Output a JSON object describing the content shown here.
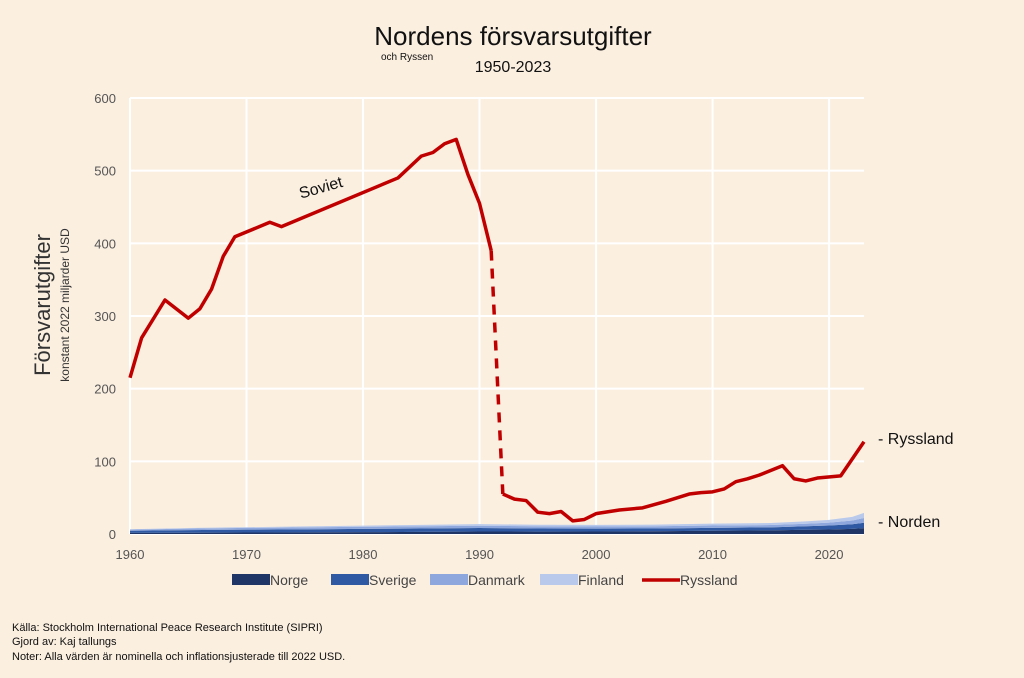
{
  "chart_data": {
    "type": "line",
    "title": "Nordens försvarsutgifter",
    "subtitle_small": "och Ryssen",
    "subtitle": "1950-2023",
    "ylabel": "Försvarutgifter",
    "ylabel_sub": "konstant 2022 miljarder USD",
    "xlim": [
      1960,
      2023
    ],
    "ylim": [
      0,
      600
    ],
    "xticks": [
      1960,
      1970,
      1980,
      1990,
      2000,
      2010,
      2020
    ],
    "yticks": [
      0,
      100,
      200,
      300,
      400,
      500,
      600
    ],
    "grid": true,
    "legend_position": "bottom",
    "annotation": "Soviet",
    "end_labels": {
      "russia": "- Ryssland",
      "nordic": "- Norden"
    },
    "colors": {
      "Norge": "#1f3566",
      "Sverige": "#2f5aa3",
      "Danmark": "#8ea8dd",
      "Finland": "#b8c9ec",
      "Ryssland": "#c00000"
    },
    "stacked_area": {
      "x": [
        1960,
        1965,
        1970,
        1975,
        1980,
        1985,
        1990,
        1995,
        2000,
        2005,
        2010,
        2015,
        2018,
        2020,
        2022,
        2023
      ],
      "series": [
        {
          "name": "Norge",
          "values": [
            1.5,
            1.8,
            2.0,
            2.2,
            2.5,
            3.0,
            3.5,
            3.3,
            3.4,
            3.8,
            4.5,
            5.0,
            5.8,
            6.2,
            7.0,
            8.0
          ]
        },
        {
          "name": "Sverige",
          "values": [
            3.0,
            3.6,
            4.0,
            4.2,
            4.5,
            4.6,
            4.7,
            4.3,
            4.0,
            3.8,
            4.0,
            4.2,
            4.8,
            5.5,
            6.5,
            7.5
          ]
        },
        {
          "name": "Danmark",
          "values": [
            1.5,
            2.0,
            2.4,
            2.8,
            3.0,
            3.1,
            3.2,
            3.1,
            3.0,
            3.0,
            3.2,
            3.1,
            3.5,
            4.0,
            5.0,
            6.5
          ]
        },
        {
          "name": "Finland",
          "values": [
            0.5,
            0.8,
            1.0,
            1.3,
            1.6,
            1.9,
            2.2,
            2.0,
            2.1,
            2.3,
            2.6,
            2.8,
            3.3,
            3.8,
            5.0,
            7.0
          ]
        }
      ]
    },
    "russia": {
      "name": "Ryssland",
      "soviet_x": [
        1960,
        1961,
        1963,
        1965,
        1966,
        1967,
        1968,
        1969,
        1972,
        1973,
        1983,
        1985,
        1986,
        1987,
        1988,
        1989,
        1990,
        1991
      ],
      "soviet_y": [
        215,
        270,
        322,
        297,
        310,
        337,
        382,
        409,
        429,
        423,
        490,
        520,
        525,
        537,
        543,
        495,
        455,
        390
      ],
      "transition_x": [
        1991,
        1992
      ],
      "transition_y": [
        390,
        55
      ],
      "russia_x": [
        1992,
        1993,
        1994,
        1995,
        1996,
        1997,
        1998,
        1999,
        2000,
        2002,
        2004,
        2006,
        2007,
        2008,
        2009,
        2010,
        2011,
        2012,
        2013,
        2014,
        2016,
        2017,
        2018,
        2019,
        2021,
        2023
      ],
      "russia_y": [
        55,
        48,
        46,
        30,
        28,
        31,
        18,
        20,
        28,
        33,
        36,
        45,
        50,
        55,
        57,
        58,
        62,
        72,
        76,
        81,
        94,
        76,
        73,
        77,
        80,
        127
      ]
    }
  },
  "legend": [
    {
      "label": "Norge",
      "kind": "box"
    },
    {
      "label": "Sverige",
      "kind": "box"
    },
    {
      "label": "Danmark",
      "kind": "box"
    },
    {
      "label": "Finland",
      "kind": "box"
    },
    {
      "label": "Ryssland",
      "kind": "line"
    }
  ],
  "footer": {
    "source": "Källa: Stockholm International Peace Research Institute (SIPRI)",
    "author": "Gjord av: Kaj tallungs",
    "notes": "Noter: Alla värden är nominella och inflationsjusterade till 2022 USD."
  }
}
